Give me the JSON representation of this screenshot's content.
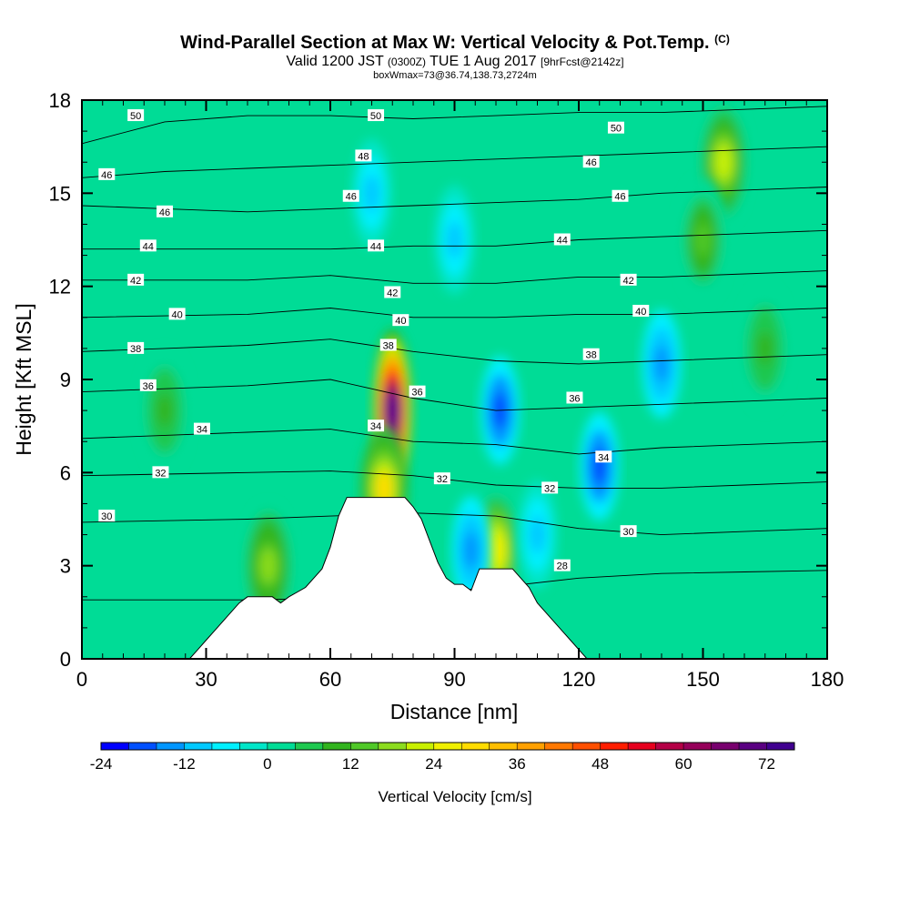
{
  "header": {
    "title": "Wind-Parallel Section at Max W: Vertical Velocity & Pot.Temp.",
    "title_mark": "(C)",
    "subtitle_pre": "Valid 1200 JST",
    "subtitle_utc": "(0300Z)",
    "subtitle_date": "TUE 1 Aug 2017",
    "subtitle_fcst": "[9hrFcst@2142z]",
    "subtitle2": "boxWmax=73@36.74,138.73,2724m"
  },
  "chart_data": {
    "type": "heatmap",
    "title": "Wind-Parallel Section at Max W: Vertical Velocity & Pot.Temp.",
    "xlabel": "Distance [nm]",
    "ylabel": "Height [Kft MSL]",
    "xlim": [
      0,
      180
    ],
    "ylim": [
      0,
      18
    ],
    "x_ticks": [
      0,
      30,
      60,
      90,
      120,
      150,
      180
    ],
    "y_ticks": [
      0,
      3,
      6,
      9,
      12,
      15,
      18
    ],
    "colorbar": {
      "label": "Vertical Velocity [cm/s]",
      "min": -24,
      "max": 75,
      "step": 4,
      "tick_labels": [
        -24,
        -12,
        0,
        12,
        24,
        36,
        48,
        60,
        72
      ],
      "colors": [
        "#0000ff",
        "#0050ff",
        "#0096ff",
        "#00c8ff",
        "#00f0ff",
        "#00e6c8",
        "#00dc96",
        "#1ec850",
        "#32b41e",
        "#50c828",
        "#8cdc1e",
        "#c8f000",
        "#f0f000",
        "#ffdc00",
        "#ffbe00",
        "#ffa000",
        "#ff7800",
        "#ff5000",
        "#ff1e00",
        "#e6001e",
        "#b40046",
        "#96005a",
        "#78006e",
        "#5a0082",
        "#400090"
      ]
    },
    "max_w": {
      "value": 73,
      "x": 75,
      "y": 8.2
    },
    "terrain_profile": {
      "x": [
        0,
        26,
        28,
        30,
        32,
        34,
        36,
        38,
        40,
        46,
        48,
        50,
        54,
        56,
        58,
        60,
        62,
        64,
        66,
        78,
        80,
        82,
        84,
        86,
        88,
        90,
        92,
        94,
        96,
        104,
        106,
        108,
        110,
        112,
        114,
        116,
        118,
        120,
        122,
        180
      ],
      "y": [
        0,
        0,
        0.3,
        0.6,
        0.9,
        1.2,
        1.5,
        1.8,
        2.0,
        2.0,
        1.8,
        2.0,
        2.3,
        2.6,
        2.9,
        3.6,
        4.6,
        5.2,
        5.2,
        5.2,
        4.9,
        4.5,
        3.8,
        3.1,
        2.6,
        2.4,
        2.4,
        2.2,
        2.9,
        2.9,
        2.6,
        2.3,
        1.8,
        1.5,
        1.2,
        0.9,
        0.6,
        0.3,
        0,
        0
      ]
    },
    "updraft_cores": [
      {
        "x": 75,
        "y": 8.0,
        "w": 73
      },
      {
        "x": 73,
        "y": 5.5,
        "w": 28
      },
      {
        "x": 100,
        "y": 3.5,
        "w": 24
      },
      {
        "x": 45,
        "y": 3.0,
        "w": 16
      },
      {
        "x": 155,
        "y": 16.0,
        "w": 22
      },
      {
        "x": 150,
        "y": 13.5,
        "w": 12
      },
      {
        "x": 165,
        "y": 10.0,
        "w": 9
      },
      {
        "x": 20,
        "y": 8.0,
        "w": 8
      }
    ],
    "downdraft_cores": [
      {
        "x": 101,
        "y": 8.0,
        "w": -20
      },
      {
        "x": 125,
        "y": 6.2,
        "w": -18
      },
      {
        "x": 140,
        "y": 9.5,
        "w": -14
      },
      {
        "x": 94,
        "y": 3.5,
        "w": -14
      },
      {
        "x": 70,
        "y": 15.0,
        "w": -10
      },
      {
        "x": 90,
        "y": 13.5,
        "w": -10
      },
      {
        "x": 110,
        "y": 4.0,
        "w": -10
      }
    ],
    "isentropes": [
      {
        "label": "28",
        "y": [
          1.9,
          1.9,
          1.9,
          1.95,
          2.1,
          2.3,
          2.6,
          2.75,
          2.8,
          2.85
        ]
      },
      {
        "label": "30",
        "y": [
          4.4,
          4.45,
          4.5,
          4.6,
          4.7,
          4.6,
          4.2,
          4.0,
          4.1,
          4.2
        ]
      },
      {
        "label": "32",
        "y": [
          5.9,
          5.95,
          6.0,
          6.05,
          5.9,
          5.6,
          5.5,
          5.5,
          5.6,
          5.7
        ]
      },
      {
        "label": "34",
        "y": [
          7.1,
          7.2,
          7.3,
          7.4,
          7.0,
          6.9,
          6.6,
          6.8,
          6.9,
          7.0
        ]
      },
      {
        "label": "36",
        "y": [
          8.6,
          8.7,
          8.8,
          9.0,
          8.4,
          8.0,
          8.1,
          8.2,
          8.3,
          8.4
        ]
      },
      {
        "label": "38",
        "y": [
          9.9,
          10.0,
          10.1,
          10.3,
          9.9,
          9.6,
          9.5,
          9.6,
          9.7,
          9.8
        ]
      },
      {
        "label": "40",
        "y": [
          11.0,
          11.05,
          11.1,
          11.3,
          11.0,
          11.0,
          11.1,
          11.1,
          11.2,
          11.3
        ]
      },
      {
        "label": "42",
        "y": [
          12.2,
          12.2,
          12.2,
          12.35,
          12.1,
          12.1,
          12.3,
          12.3,
          12.4,
          12.5
        ]
      },
      {
        "label": "44",
        "y": [
          13.2,
          13.2,
          13.2,
          13.2,
          13.3,
          13.3,
          13.5,
          13.6,
          13.7,
          13.8
        ]
      },
      {
        "label": "46",
        "y": [
          14.6,
          14.5,
          14.4,
          14.5,
          14.6,
          14.7,
          14.8,
          15.0,
          15.1,
          15.2
        ]
      },
      {
        "label": "48",
        "y": [
          15.5,
          15.7,
          15.8,
          15.9,
          16.0,
          16.1,
          16.2,
          16.3,
          16.4,
          16.5
        ]
      },
      {
        "label": "50",
        "y": [
          16.6,
          17.3,
          17.5,
          17.5,
          17.4,
          17.5,
          17.6,
          17.6,
          17.7,
          17.8
        ]
      }
    ],
    "isentrope_label_points": [
      {
        "text": "50",
        "x": 13,
        "y": 17.5
      },
      {
        "text": "50",
        "x": 71,
        "y": 17.5
      },
      {
        "text": "50",
        "x": 129,
        "y": 17.1
      },
      {
        "text": "48",
        "x": 68,
        "y": 16.2
      },
      {
        "text": "46",
        "x": 6,
        "y": 15.6
      },
      {
        "text": "46",
        "x": 123,
        "y": 16.0
      },
      {
        "text": "46",
        "x": 65,
        "y": 14.9
      },
      {
        "text": "46",
        "x": 130,
        "y": 14.9
      },
      {
        "text": "46",
        "x": 20,
        "y": 14.4
      },
      {
        "text": "44",
        "x": 16,
        "y": 13.3
      },
      {
        "text": "44",
        "x": 71,
        "y": 13.3
      },
      {
        "text": "44",
        "x": 116,
        "y": 13.5
      },
      {
        "text": "42",
        "x": 13,
        "y": 12.2
      },
      {
        "text": "42",
        "x": 75,
        "y": 11.8
      },
      {
        "text": "42",
        "x": 132,
        "y": 12.2
      },
      {
        "text": "40",
        "x": 23,
        "y": 11.1
      },
      {
        "text": "40",
        "x": 77,
        "y": 10.9
      },
      {
        "text": "40",
        "x": 135,
        "y": 11.2
      },
      {
        "text": "38",
        "x": 13,
        "y": 10.0
      },
      {
        "text": "38",
        "x": 74,
        "y": 10.1
      },
      {
        "text": "38",
        "x": 123,
        "y": 9.8
      },
      {
        "text": "36",
        "x": 16,
        "y": 8.8
      },
      {
        "text": "36",
        "x": 81,
        "y": 8.6
      },
      {
        "text": "36",
        "x": 119,
        "y": 8.4
      },
      {
        "text": "34",
        "x": 29,
        "y": 7.4
      },
      {
        "text": "34",
        "x": 71,
        "y": 7.5
      },
      {
        "text": "34",
        "x": 126,
        "y": 6.5
      },
      {
        "text": "32",
        "x": 19,
        "y": 6.0
      },
      {
        "text": "32",
        "x": 87,
        "y": 5.8
      },
      {
        "text": "32",
        "x": 113,
        "y": 5.5
      },
      {
        "text": "30",
        "x": 6,
        "y": 4.6
      },
      {
        "text": "30",
        "x": 132,
        "y": 4.1
      },
      {
        "text": "28",
        "x": 116,
        "y": 3.0
      }
    ]
  }
}
